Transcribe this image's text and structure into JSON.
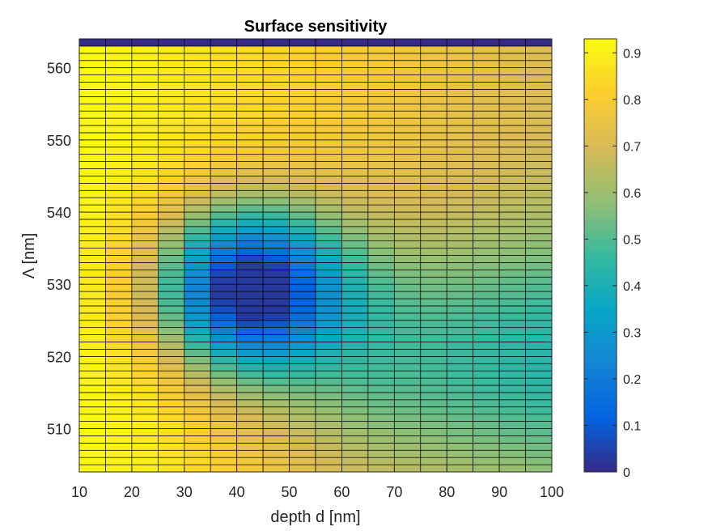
{
  "chart_data": {
    "type": "heatmap",
    "title": "Surface sensitivity",
    "xlabel": "depth d [nm]",
    "ylabel": "Λ [nm]",
    "x": [
      10,
      15,
      20,
      25,
      30,
      35,
      40,
      45,
      50,
      55,
      60,
      65,
      70,
      75,
      80,
      85,
      90,
      95
    ],
    "y_start": 504,
    "y_end": 564,
    "y_step": 1,
    "xlim": [
      10,
      100
    ],
    "ylim": [
      504,
      564
    ],
    "xticks": [
      "10",
      "20",
      "30",
      "40",
      "50",
      "60",
      "70",
      "80",
      "90",
      "100"
    ],
    "yticks": [
      "510",
      "520",
      "530",
      "540",
      "550",
      "560"
    ],
    "clim": [
      0,
      0.93
    ],
    "colorbar_ticks": [
      "0",
      "0.1",
      "0.2",
      "0.3",
      "0.4",
      "0.5",
      "0.6",
      "0.7",
      "0.8",
      "0.9"
    ],
    "colormap": "parula",
    "top_row_value": 0,
    "grid": true,
    "values_note_model": {
      "dip_center_depth": 42,
      "dip_center_lambda": 529.5
    }
  },
  "colors": {
    "parula": [
      "#352a87",
      "#0363e1",
      "#1485d4",
      "#06a7c6",
      "#38b99e",
      "#92bf73",
      "#d9ba56",
      "#fcce2e",
      "#f9fb0e"
    ],
    "edge": "#000000",
    "axis": "#262626"
  }
}
